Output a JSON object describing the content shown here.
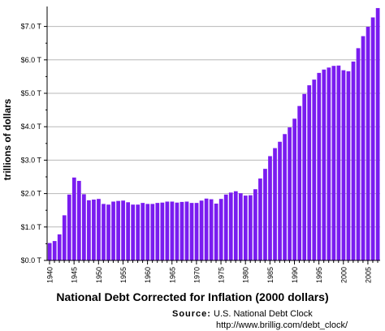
{
  "chart_data": {
    "type": "bar",
    "title": "National Debt Corrected for Inflation (2000 dollars)",
    "xlabel": "",
    "ylabel": "trillions of dollars",
    "ylim": [
      0,
      7.5
    ],
    "y_ticks": [
      "$0.0 T",
      "$1.0 T",
      "$2.0 T",
      "$3.0 T",
      "$4.0 T",
      "$5.0 T",
      "$6.0 T",
      "$7.0 T"
    ],
    "x_ticks": [
      "1940",
      "1945",
      "1950",
      "1955",
      "1960",
      "1965",
      "1970",
      "1975",
      "1980",
      "1985",
      "1990",
      "1995",
      "2000",
      "2005"
    ],
    "grid": true,
    "bar_color": "#7a1cf0",
    "categories": [
      1940,
      1941,
      1942,
      1943,
      1944,
      1945,
      1946,
      1947,
      1948,
      1949,
      1950,
      1951,
      1952,
      1953,
      1954,
      1955,
      1956,
      1957,
      1958,
      1959,
      1960,
      1961,
      1962,
      1963,
      1964,
      1965,
      1966,
      1967,
      1968,
      1969,
      1970,
      1971,
      1972,
      1973,
      1974,
      1975,
      1976,
      1977,
      1978,
      1979,
      1980,
      1981,
      1982,
      1983,
      1984,
      1985,
      1986,
      1987,
      1988,
      1989,
      1990,
      1991,
      1992,
      1993,
      1994,
      1995,
      1996,
      1997,
      1998,
      1999,
      2000,
      2001,
      2002,
      2003,
      2004,
      2005,
      2006,
      2007
    ],
    "values": [
      0.52,
      0.58,
      0.78,
      1.35,
      1.97,
      2.48,
      2.38,
      1.98,
      1.8,
      1.82,
      1.84,
      1.69,
      1.67,
      1.76,
      1.78,
      1.79,
      1.74,
      1.67,
      1.67,
      1.72,
      1.69,
      1.69,
      1.72,
      1.73,
      1.76,
      1.76,
      1.73,
      1.75,
      1.76,
      1.72,
      1.72,
      1.79,
      1.85,
      1.83,
      1.7,
      1.84,
      1.97,
      2.03,
      2.07,
      2.01,
      1.94,
      1.95,
      2.13,
      2.45,
      2.74,
      3.12,
      3.36,
      3.55,
      3.78,
      3.98,
      4.24,
      4.62,
      4.98,
      5.24,
      5.41,
      5.61,
      5.71,
      5.77,
      5.82,
      5.83,
      5.69,
      5.66,
      5.95,
      6.35,
      6.71,
      6.99,
      7.27,
      7.55
    ]
  },
  "source": {
    "label": "Source:",
    "text": "U.S. National Debt Clock",
    "url": "http://www.brillig.com/debt_clock/"
  }
}
